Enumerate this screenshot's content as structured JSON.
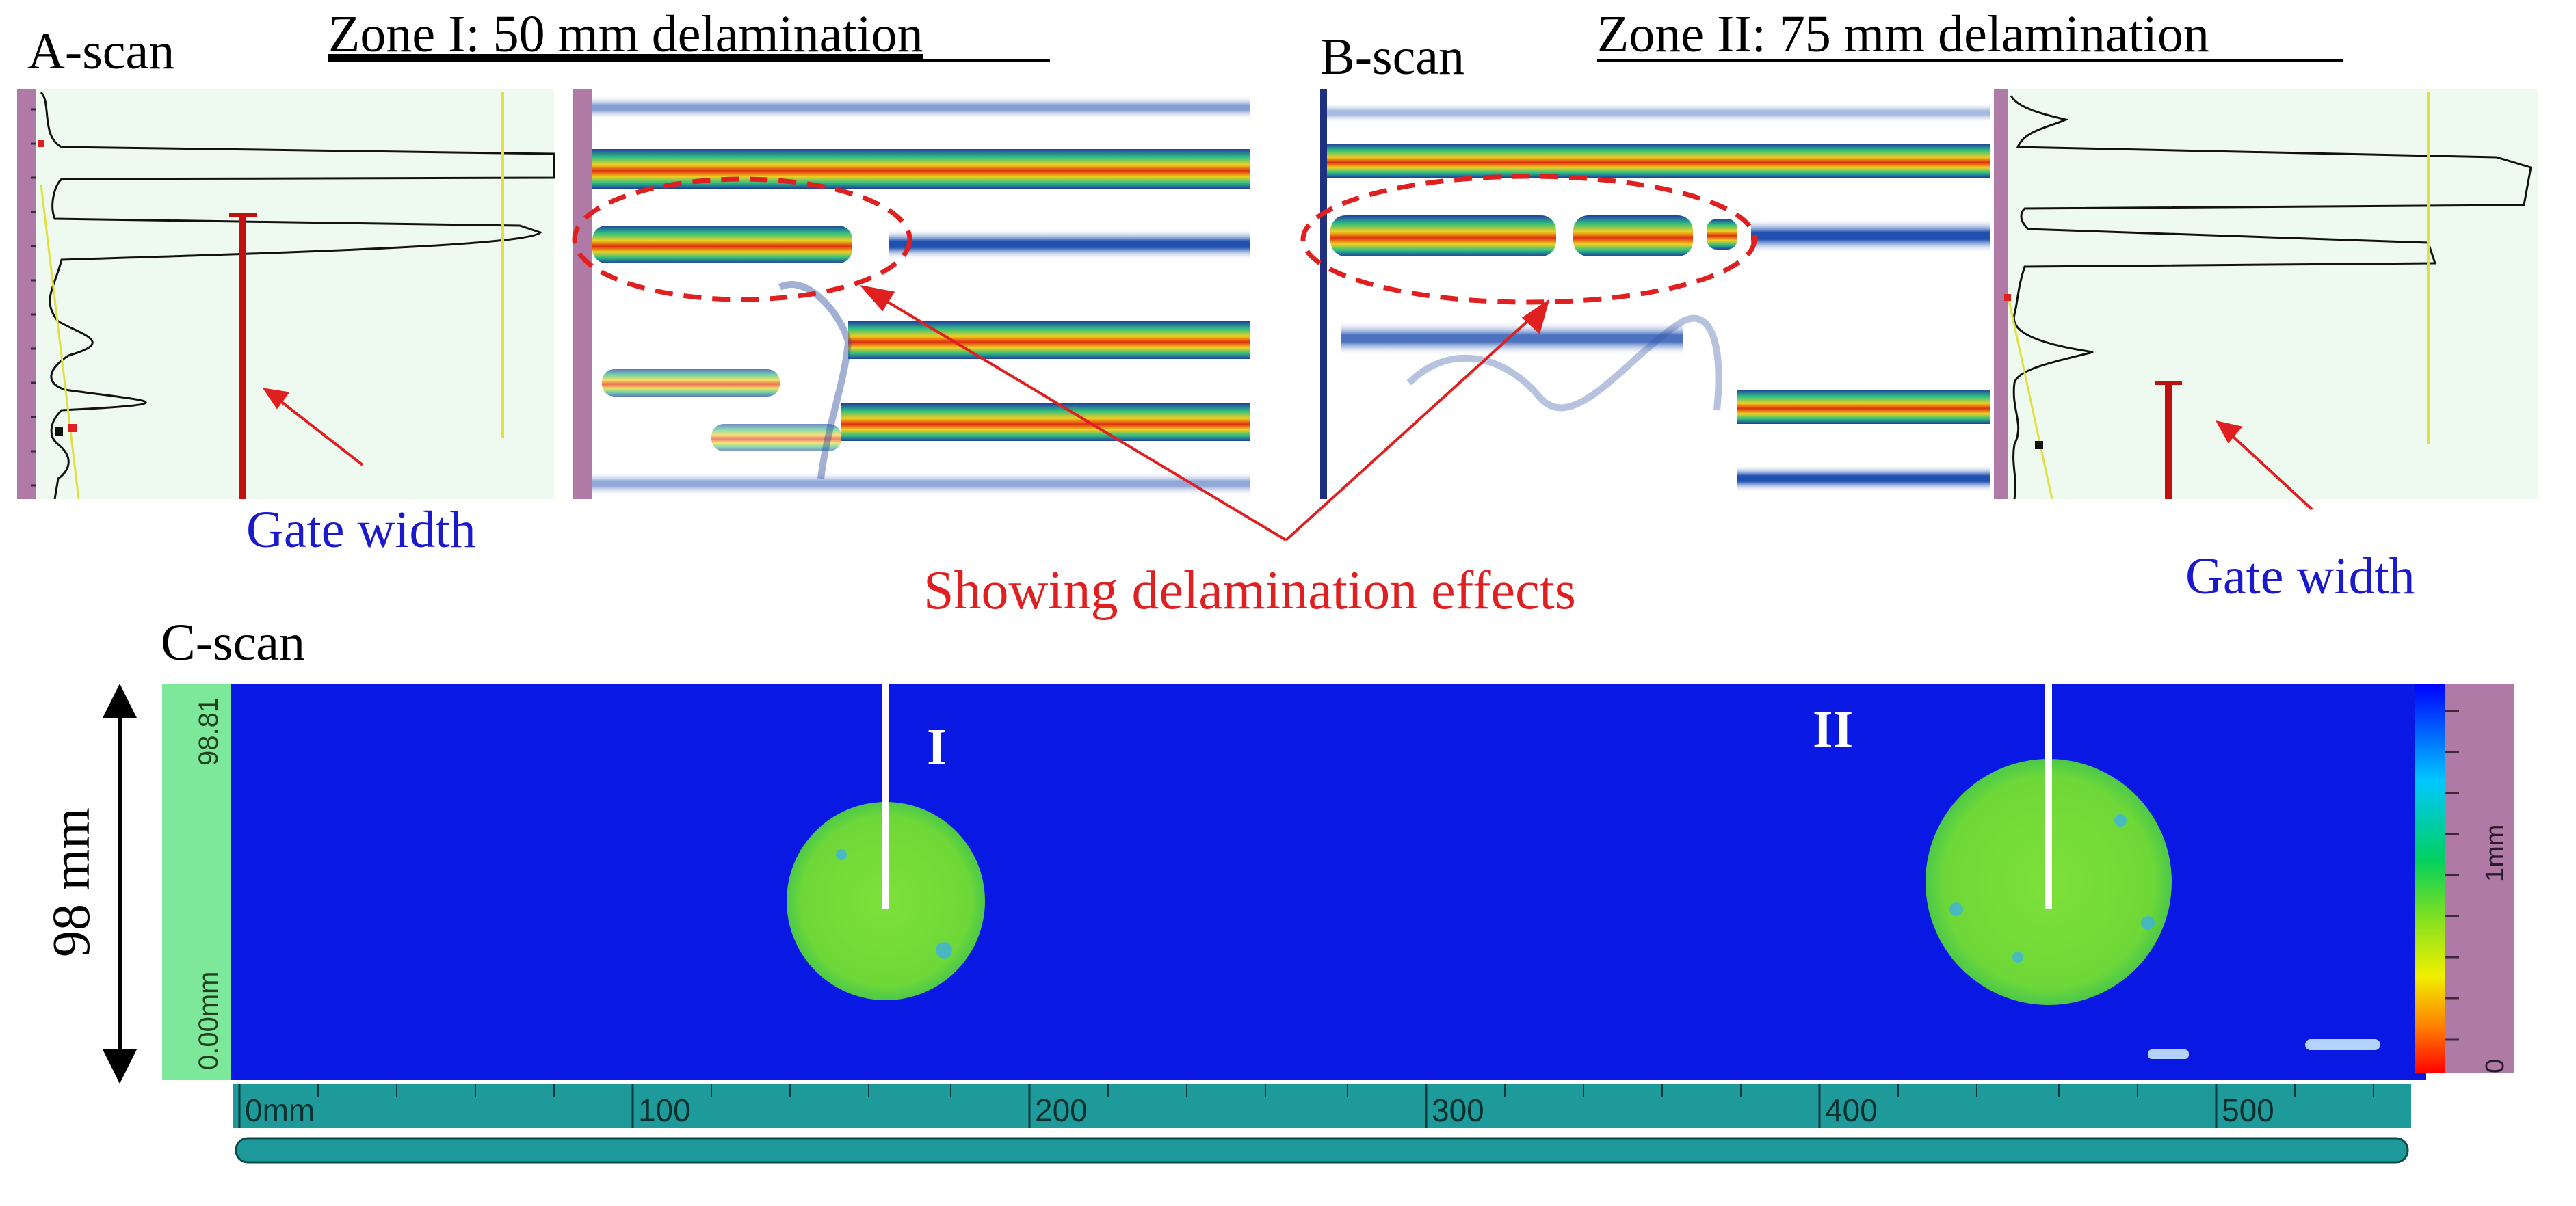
{
  "labels": {
    "a_scan": "A-scan",
    "b_scan": "B-scan",
    "c_scan": "C-scan",
    "zone1_title": "Zone I: 50 mm delamination",
    "zone2_title": "Zone II: 75 mm delamination",
    "gate_width_left": "Gate width",
    "gate_width_right": "Gate width",
    "delamination_note": "Showing delamination effects",
    "dimension": "98 mm",
    "marker_1": "I",
    "marker_2": "II"
  },
  "cscan": {
    "y_top": "98.81",
    "y_bottom": "0.00mm",
    "x_ticks": [
      "0mm",
      "100",
      "200",
      "300",
      "400",
      "500"
    ],
    "colorbar_top": "1mm",
    "colorbar_bottom": "0"
  },
  "colors": {
    "annotation_red": "#e02020",
    "gate_blue": "#1a1acc",
    "cscan_background": "#0a14e6",
    "defect_green": "#7ee03a",
    "ruler_teal": "#1e9a9a",
    "panel_pink": "#b07aa6",
    "ascan_bg": "#eefaf0"
  }
}
